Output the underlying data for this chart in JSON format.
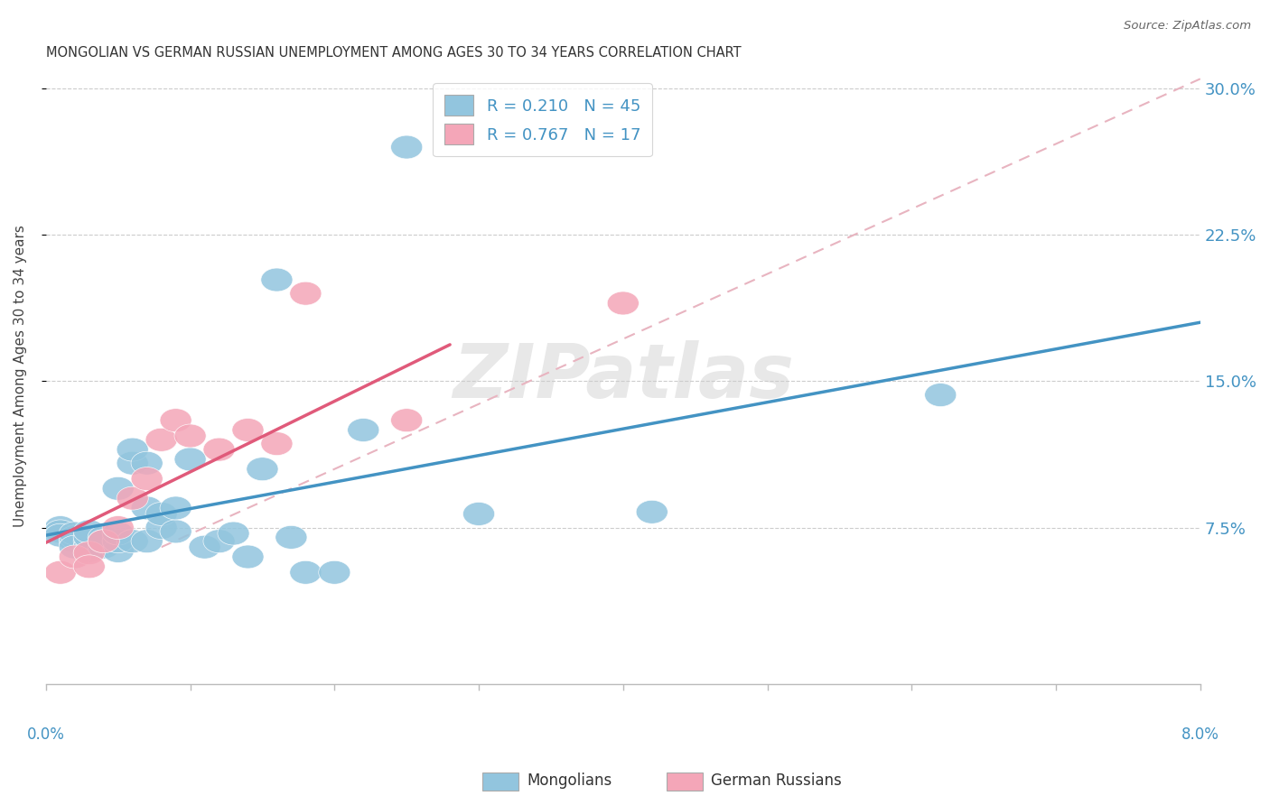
{
  "title": "MONGOLIAN VS GERMAN RUSSIAN UNEMPLOYMENT AMONG AGES 30 TO 34 YEARS CORRELATION CHART",
  "source": "Source: ZipAtlas.com",
  "ylabel": "Unemployment Among Ages 30 to 34 years",
  "xlim": [
    0.0,
    0.08
  ],
  "ylim": [
    -0.005,
    0.31
  ],
  "yticks": [
    0.075,
    0.15,
    0.225,
    0.3
  ],
  "ytick_labels": [
    "7.5%",
    "15.0%",
    "22.5%",
    "30.0%"
  ],
  "mongolians_R": 0.21,
  "mongolians_N": 45,
  "german_russians_R": 0.767,
  "german_russians_N": 17,
  "mongolian_color": "#92c5de",
  "german_russian_color": "#f4a6b8",
  "mongolian_line_color": "#4393c3",
  "german_russian_line_color": "#e05a7a",
  "diag_color": "#e8b4c0",
  "background_color": "#ffffff",
  "mongolians_x": [
    0.001,
    0.001,
    0.001,
    0.002,
    0.002,
    0.002,
    0.002,
    0.003,
    0.003,
    0.003,
    0.003,
    0.003,
    0.004,
    0.004,
    0.004,
    0.004,
    0.005,
    0.005,
    0.005,
    0.005,
    0.006,
    0.006,
    0.006,
    0.007,
    0.007,
    0.007,
    0.008,
    0.008,
    0.009,
    0.009,
    0.01,
    0.011,
    0.012,
    0.013,
    0.014,
    0.015,
    0.016,
    0.017,
    0.018,
    0.02,
    0.022,
    0.025,
    0.03,
    0.042,
    0.062
  ],
  "mongolians_y": [
    0.075,
    0.073,
    0.071,
    0.068,
    0.07,
    0.072,
    0.065,
    0.068,
    0.065,
    0.063,
    0.07,
    0.073,
    0.067,
    0.065,
    0.07,
    0.068,
    0.063,
    0.068,
    0.072,
    0.095,
    0.108,
    0.115,
    0.068,
    0.108,
    0.085,
    0.068,
    0.075,
    0.082,
    0.073,
    0.085,
    0.11,
    0.065,
    0.068,
    0.072,
    0.06,
    0.105,
    0.202,
    0.07,
    0.052,
    0.052,
    0.125,
    0.27,
    0.082,
    0.083,
    0.143
  ],
  "german_russians_x": [
    0.001,
    0.002,
    0.003,
    0.003,
    0.004,
    0.005,
    0.006,
    0.007,
    0.008,
    0.009,
    0.01,
    0.012,
    0.014,
    0.016,
    0.018,
    0.025,
    0.04
  ],
  "german_russians_y": [
    0.052,
    0.06,
    0.062,
    0.055,
    0.068,
    0.075,
    0.09,
    0.1,
    0.12,
    0.13,
    0.122,
    0.115,
    0.125,
    0.118,
    0.195,
    0.13,
    0.19
  ]
}
